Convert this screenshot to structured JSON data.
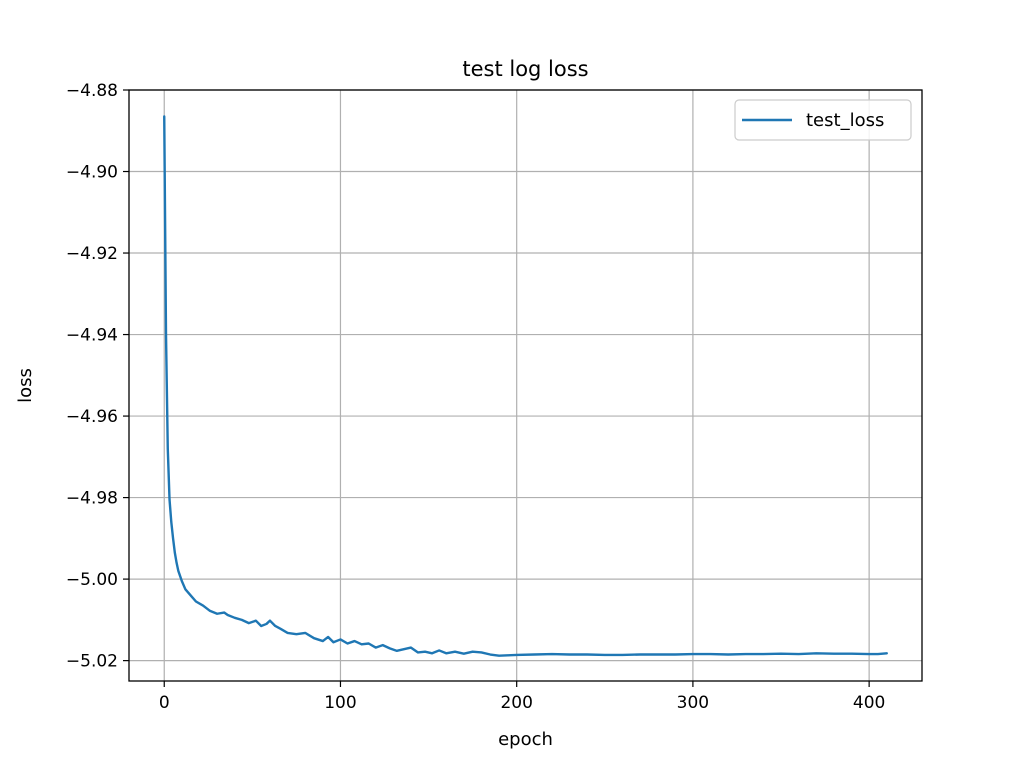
{
  "chart_data": {
    "type": "line",
    "title": "test log loss",
    "xlabel": "epoch",
    "ylabel": "loss",
    "xlim": [
      -20,
      430
    ],
    "ylim": [
      -5.025,
      -4.88
    ],
    "xticks": [
      0,
      100,
      200,
      300,
      400
    ],
    "xtick_labels": [
      "0",
      "100",
      "200",
      "300",
      "400"
    ],
    "yticks": [
      -4.88,
      -4.9,
      -4.92,
      -4.94,
      -4.96,
      -4.98,
      -5.0,
      -5.02
    ],
    "ytick_labels": [
      "−4.88",
      "−4.90",
      "−4.92",
      "−4.94",
      "−4.96",
      "−4.98",
      "−5.00",
      "−5.02"
    ],
    "grid": true,
    "legend_position": "top-right",
    "series": [
      {
        "name": "test_loss",
        "color": "#1f77b4",
        "x": [
          0,
          1,
          2,
          3,
          4,
          5,
          6,
          7,
          8,
          10,
          12,
          15,
          18,
          22,
          26,
          30,
          34,
          36,
          40,
          44,
          48,
          52,
          55,
          58,
          60,
          63,
          66,
          70,
          75,
          80,
          85,
          90,
          93,
          96,
          100,
          104,
          108,
          112,
          116,
          120,
          124,
          128,
          132,
          136,
          140,
          144,
          148,
          152,
          156,
          160,
          165,
          170,
          175,
          180,
          185,
          190,
          195,
          200,
          210,
          220,
          230,
          240,
          250,
          260,
          270,
          280,
          290,
          300,
          310,
          320,
          330,
          340,
          350,
          360,
          370,
          380,
          390,
          400,
          405,
          410
        ],
        "y": [
          -4.8865,
          -4.94,
          -4.968,
          -4.9805,
          -4.986,
          -4.99,
          -4.9935,
          -4.996,
          -4.998,
          -5.0005,
          -5.0025,
          -5.004,
          -5.0055,
          -5.0065,
          -5.0078,
          -5.0085,
          -5.0082,
          -5.0088,
          -5.0095,
          -5.01,
          -5.0108,
          -5.0102,
          -5.0115,
          -5.011,
          -5.0102,
          -5.0115,
          -5.0122,
          -5.0132,
          -5.0135,
          -5.0132,
          -5.0145,
          -5.0152,
          -5.0142,
          -5.0155,
          -5.0148,
          -5.0158,
          -5.0152,
          -5.016,
          -5.0158,
          -5.0168,
          -5.0162,
          -5.017,
          -5.0176,
          -5.0172,
          -5.0168,
          -5.018,
          -5.0178,
          -5.0182,
          -5.0175,
          -5.0182,
          -5.0178,
          -5.0183,
          -5.0178,
          -5.018,
          -5.0185,
          -5.0188,
          -5.0187,
          -5.0186,
          -5.0185,
          -5.0184,
          -5.0185,
          -5.0185,
          -5.0186,
          -5.0186,
          -5.0185,
          -5.0185,
          -5.0185,
          -5.0184,
          -5.0184,
          -5.0185,
          -5.0184,
          -5.0184,
          -5.0183,
          -5.0184,
          -5.0182,
          -5.0183,
          -5.0183,
          -5.0184,
          -5.0184,
          -5.0182
        ]
      }
    ]
  }
}
